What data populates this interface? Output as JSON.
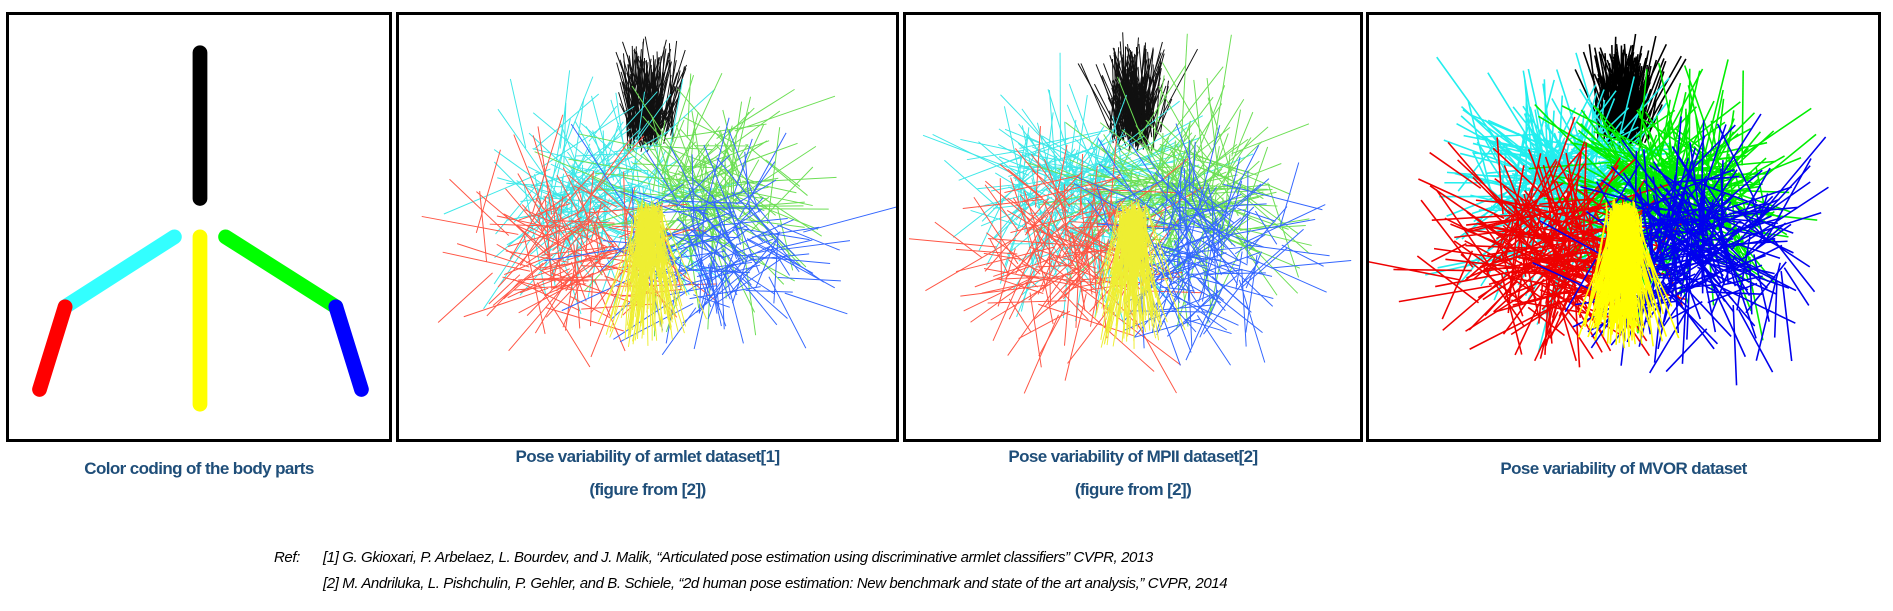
{
  "panels": [
    {
      "caption": [
        "Color coding of the body parts"
      ]
    },
    {
      "caption": [
        "Pose variability of armlet dataset[1]",
        "(figure from [2])"
      ]
    },
    {
      "caption": [
        "Pose variability of MPII dataset[2]",
        "(figure from [2])"
      ]
    },
    {
      "caption": [
        "Pose variability of MVOR dataset"
      ]
    }
  ],
  "colors": {
    "head": "#000000",
    "left_upper_arm": "#33FFFF",
    "left_lower_arm": "#FF0000",
    "torso": "#FFFF00",
    "right_upper_arm": "#00FF00",
    "right_lower_arm": "#0000FF",
    "caption": "#1F4E79"
  },
  "refs": {
    "label": "Ref:",
    "items": [
      "[1] G. Gkioxari, P. Arbelaez, L. Bourdev, and J. Malik, “Articulated pose estimation using discriminative armlet classifiers” CVPR, 2013",
      "[2] M. Andriluka, L. Pishchulin, P. Gehler, and B. Schiele, “2d human pose estimation: New benchmark and state of the art analysis,” CVPR, 2014"
    ]
  }
}
